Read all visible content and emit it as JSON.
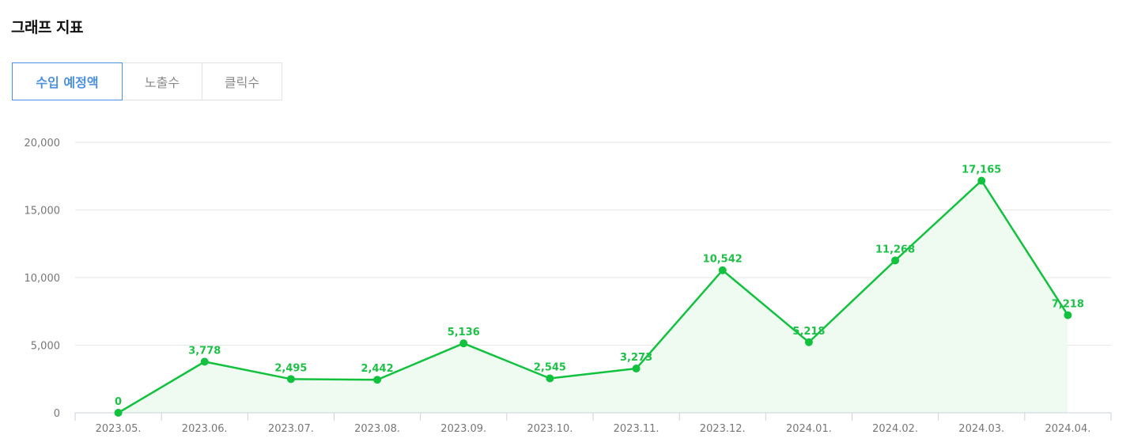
{
  "header": {
    "title": "그래프 지표"
  },
  "tabs": [
    {
      "label": "수입 예정액",
      "active": true
    },
    {
      "label": "노출수",
      "active": false
    },
    {
      "label": "클릭수",
      "active": false
    }
  ],
  "colors": {
    "accent": "#4a90e2",
    "series": "#12c23f",
    "fill": "#effbf1",
    "grid": "#e6e6e6"
  },
  "chart_data": {
    "type": "area",
    "title": "",
    "xlabel": "",
    "ylabel": "",
    "ylim": [
      0,
      20000
    ],
    "yticks": [
      0,
      5000,
      10000,
      15000,
      20000
    ],
    "ytick_labels": [
      "0",
      "5,000",
      "10,000",
      "15,000",
      "20,000"
    ],
    "grid": true,
    "categories": [
      "2023.05.",
      "2023.06.",
      "2023.07.",
      "2023.08.",
      "2023.09.",
      "2023.10.",
      "2023.11.",
      "2023.12.",
      "2024.01.",
      "2024.02.",
      "2024.03.",
      "2024.04."
    ],
    "values": [
      0,
      3778,
      2495,
      2442,
      5136,
      2545,
      3273,
      10542,
      5218,
      11268,
      17165,
      7218
    ],
    "value_labels": [
      "0",
      "3,778",
      "2,495",
      "2,442",
      "5,136",
      "2,545",
      "3,273",
      "10,542",
      "5,218",
      "11,268",
      "17,165",
      "7,218"
    ]
  }
}
